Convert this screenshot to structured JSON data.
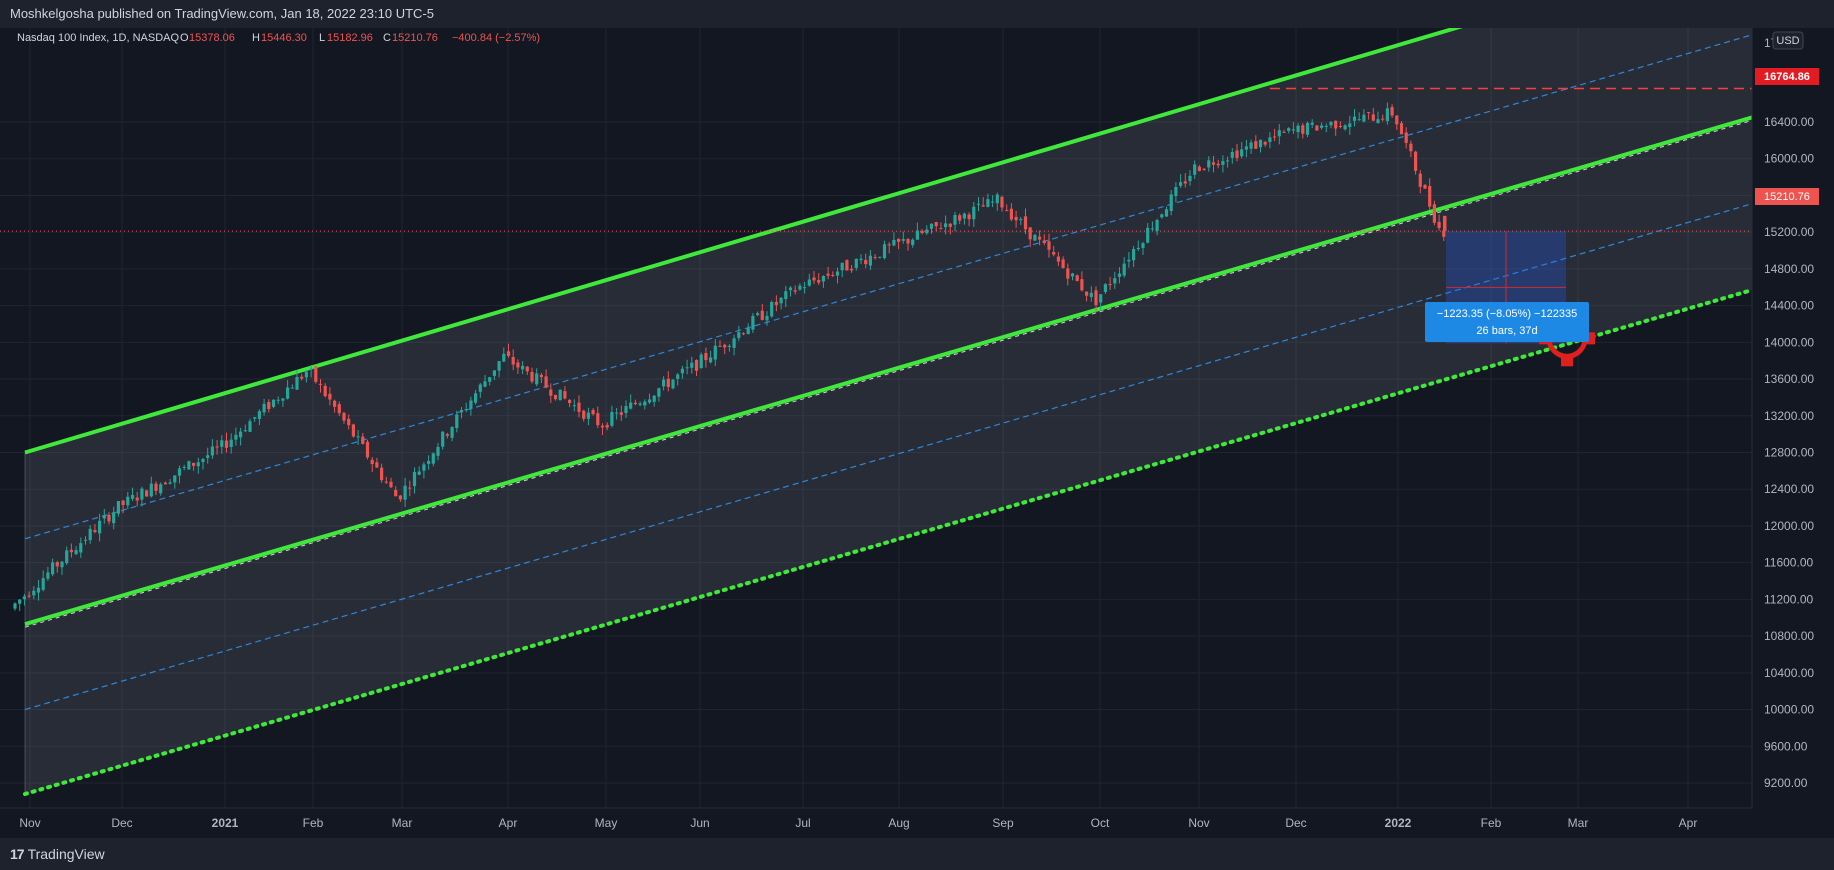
{
  "header": {
    "published_line": "Moshkelgosha published on TradingView.com, Jan 18, 2022 23:10 UTC-5"
  },
  "legend": {
    "symbol": "Nasdaq 100 Index, 1D, NASDAQ",
    "o_label": "O",
    "o_value": "15378.06",
    "h_label": "H",
    "h_value": "15446.30",
    "l_label": "L",
    "l_value": "15182.96",
    "c_label": "C",
    "c_value": "15210.76",
    "change": "−400.84 (−2.57%)"
  },
  "currency_button": "USD",
  "top_axis_label": "17",
  "price_labels": {
    "high": "16764.86",
    "last": "15210.76"
  },
  "measure_tooltip": {
    "line1": "−1223.35 (−8.05%) −122335",
    "line2": "26 bars, 37d"
  },
  "footer": {
    "brand": "TradingView"
  },
  "colors": {
    "background": "#131722",
    "up": "#26a69a",
    "down": "#ef5350",
    "channel": "#3fe83a",
    "dashed_mid": "#2f86d6",
    "high_line": "#ff3b3b",
    "tooltip_bg": "#1e88e5"
  },
  "chart_data": {
    "type": "candlestick",
    "title": "Nasdaq 100 Index, 1D, NASDAQ",
    "x_tick_labels": [
      "Nov",
      "Dec",
      "2021",
      "Feb",
      "Mar",
      "Apr",
      "May",
      "Jun",
      "Jul",
      "Aug",
      "Sep",
      "Oct",
      "Nov",
      "Dec",
      "2022",
      "Feb",
      "Mar",
      "Apr"
    ],
    "y_tick_labels": [
      "9200.00",
      "9600.00",
      "10000.00",
      "10400.00",
      "10800.00",
      "11200.00",
      "11600.00",
      "12000.00",
      "12400.00",
      "12800.00",
      "13200.00",
      "13600.00",
      "14000.00",
      "14400.00",
      "14800.00",
      "15200.00",
      "15600.00",
      "16000.00",
      "16400.00"
    ],
    "ylim": [
      8930,
      17400
    ],
    "grid": true,
    "price_path": [
      [
        "Nov",
        11100
      ],
      [
        "Dec",
        12200
      ],
      [
        "2021",
        12850
      ],
      [
        "Feb",
        13700
      ],
      [
        "Mar",
        12300
      ],
      [
        "Apr",
        13850
      ],
      [
        "May",
        13100
      ],
      [
        "Jun",
        13750
      ],
      [
        "Jul",
        14600
      ],
      [
        "Aug",
        15050
      ],
      [
        "Sep",
        15550
      ],
      [
        "Oct",
        14450
      ],
      [
        "Nov",
        15900
      ],
      [
        "Dec",
        16300
      ],
      [
        "2022",
        16500
      ],
      [
        "Feb",
        15210.76
      ]
    ],
    "channel_lines": [
      {
        "name": "upper",
        "style": "solid",
        "from": [
          "Nov",
          12800
        ],
        "to": [
          "Dec 2021",
          17400
        ]
      },
      {
        "name": "lower",
        "style": "solid",
        "from": [
          "Nov",
          10930
        ],
        "to": [
          "Apr",
          16450
        ]
      },
      {
        "name": "support",
        "style": "dotted",
        "from": [
          "Nov",
          9080
        ],
        "to": [
          "Apr",
          14570
        ]
      },
      {
        "name": "mid-upper",
        "style": "dashed",
        "from": [
          "Nov",
          11860
        ],
        "to": [
          "Apr",
          17350
        ]
      },
      {
        "name": "mid-lower",
        "style": "dashed",
        "from": [
          "Nov",
          10000
        ],
        "to": [
          "Apr",
          15510
        ]
      }
    ],
    "horizontal_levels": [
      {
        "value": 16764.86,
        "style": "dashed",
        "color": "#ff3b3b"
      },
      {
        "value": 15210.76,
        "style": "dotted",
        "color": "#ef5350"
      }
    ],
    "measure": {
      "from_price": 15210.76,
      "to_price": 13987.41,
      "change": -1223.35,
      "change_pct": -8.05,
      "bars": 26,
      "days": 37
    }
  }
}
